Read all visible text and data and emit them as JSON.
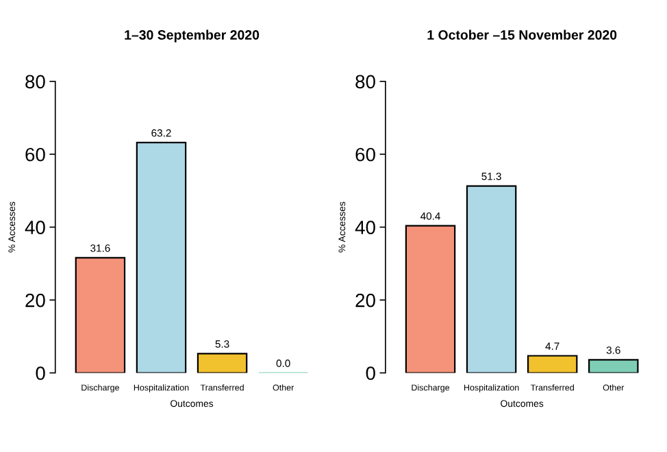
{
  "chart_data": [
    {
      "type": "bar",
      "title": "1–30 September 2020",
      "xlabel": "Outcomes",
      "ylabel": "% Accesses",
      "categories": [
        "Discharge",
        "Hospitalization",
        "Transferred",
        "Other"
      ],
      "values": [
        31.6,
        63.2,
        5.3,
        0.0
      ],
      "value_labels": [
        "31.6",
        "63.2",
        "5.3",
        "0.0"
      ],
      "colors": [
        "#f4937a",
        "#add8e6",
        "#f2c12e",
        "#7fcdb5"
      ],
      "ylim": [
        0,
        80
      ],
      "yticks": [
        0,
        20,
        40,
        60,
        80
      ],
      "grid": false,
      "legend": false
    },
    {
      "type": "bar",
      "title": "1 October –15 November 2020",
      "xlabel": "Outcomes",
      "ylabel": "% Accesses",
      "categories": [
        "Discharge",
        "Hospitalization",
        "Transferred",
        "Other"
      ],
      "values": [
        40.4,
        51.3,
        4.7,
        3.6
      ],
      "colors": [
        "#f4937a",
        "#add8e6",
        "#f2c12e",
        "#7fcdb5"
      ],
      "ylim": [
        0,
        80
      ],
      "yticks": [
        0,
        20,
        40,
        60,
        80
      ],
      "data_labels": true,
      "grid": false,
      "legend": false
    }
  ]
}
